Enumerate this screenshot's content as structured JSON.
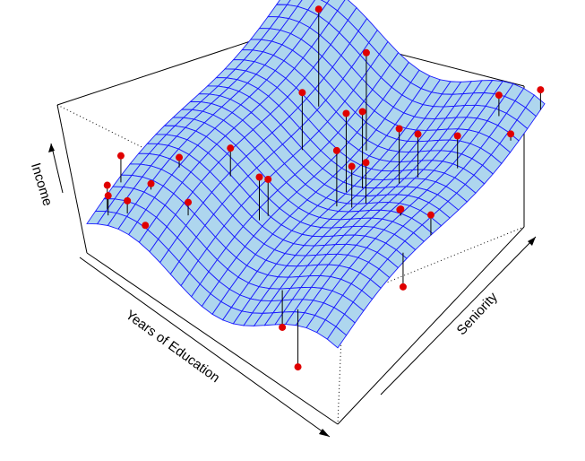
{
  "chart_data": {
    "type": "surface3d",
    "title": "",
    "axes": {
      "x": {
        "label": "Years of Education",
        "range": [
          0,
          1
        ]
      },
      "y": {
        "label": "Seniority",
        "range": [
          0,
          1
        ]
      },
      "z": {
        "label": "Income",
        "range": [
          0,
          1
        ]
      }
    },
    "tick_labels": false,
    "surface": {
      "grid_resolution": [
        24,
        24
      ],
      "fill_color": "#aed6ee",
      "line_color": "#1a1aff",
      "description": "smooth wavy regression surface, rising with both Years of Education and Seniority"
    },
    "points": [
      {
        "x": 0.02,
        "y": 0.14,
        "z": 0.42
      },
      {
        "x": 0.04,
        "y": 0.05,
        "z": 0.36
      },
      {
        "x": 0.06,
        "y": 0.03,
        "z": 0.34
      },
      {
        "x": 0.14,
        "y": 0.14,
        "z": 0.38
      },
      {
        "x": 0.17,
        "y": 0.24,
        "z": 0.46
      },
      {
        "x": 0.12,
        "y": 0.05,
        "z": 0.35
      },
      {
        "x": 0.2,
        "y": 0.04,
        "z": 0.3
      },
      {
        "x": 0.28,
        "y": 0.15,
        "z": 0.4
      },
      {
        "x": 0.3,
        "y": 0.33,
        "z": 0.55
      },
      {
        "x": 0.33,
        "y": 0.72,
        "z": 0.98
      },
      {
        "x": 0.38,
        "y": 0.58,
        "z": 0.7
      },
      {
        "x": 0.44,
        "y": 0.3,
        "z": 0.55
      },
      {
        "x": 0.45,
        "y": 0.33,
        "z": 0.52
      },
      {
        "x": 0.52,
        "y": 0.72,
        "z": 0.92
      },
      {
        "x": 0.58,
        "y": 0.55,
        "z": 0.8
      },
      {
        "x": 0.62,
        "y": 0.58,
        "z": 0.82
      },
      {
        "x": 0.6,
        "y": 0.48,
        "z": 0.68
      },
      {
        "x": 0.66,
        "y": 0.48,
        "z": 0.65
      },
      {
        "x": 0.7,
        "y": 0.5,
        "z": 0.69
      },
      {
        "x": 0.68,
        "y": 0.12,
        "z": 0.12
      },
      {
        "x": 0.8,
        "y": 0.05,
        "z": 0.08
      },
      {
        "x": 0.75,
        "y": 0.6,
        "z": 0.83
      },
      {
        "x": 0.8,
        "y": 0.63,
        "z": 0.82
      },
      {
        "x": 0.88,
        "y": 0.45,
        "z": 0.65
      },
      {
        "x": 0.86,
        "y": 0.47,
        "z": 0.61
      },
      {
        "x": 0.9,
        "y": 0.7,
        "z": 0.84
      },
      {
        "x": 0.98,
        "y": 0.34,
        "z": 0.42
      },
      {
        "x": 1.0,
        "y": 0.45,
        "z": 0.73
      },
      {
        "x": 0.9,
        "y": 0.9,
        "z": 0.88
      },
      {
        "x": 0.98,
        "y": 0.86,
        "z": 0.78
      },
      {
        "x": 1.0,
        "y": 0.98,
        "z": 0.93
      }
    ],
    "point_color": "#e00000",
    "residual_line_color": "#000000"
  }
}
